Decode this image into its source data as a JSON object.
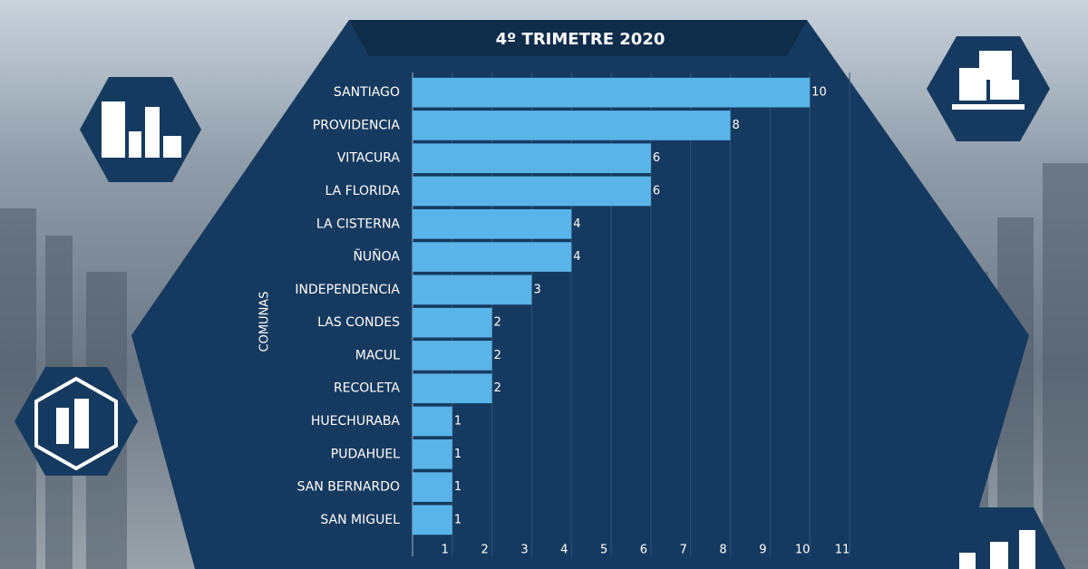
{
  "chart_data": {
    "type": "bar",
    "orientation": "horizontal",
    "title": "4º TRIMETRE 2020",
    "y_label": "COMUNAS",
    "categories": [
      "SANTIAGO",
      "PROVIDENCIA",
      "VITACURA",
      "LA FLORIDA",
      "LA CISTERNA",
      "ÑUÑOA",
      "INDEPENDENCIA",
      "LAS CONDES",
      "MACUL",
      "RECOLETA",
      "HUECHURABA",
      "PUDAHUEL",
      "SAN BERNARDO",
      "SAN MIGUEL"
    ],
    "values": [
      10,
      8,
      6,
      6,
      4,
      4,
      3,
      2,
      2,
      2,
      1,
      1,
      1,
      1
    ],
    "color": "#5ab4e8",
    "xlim": [
      0,
      11
    ],
    "xticks": [
      1,
      2,
      3,
      4,
      5,
      6,
      7,
      8,
      9,
      10,
      11
    ],
    "grid": true
  }
}
